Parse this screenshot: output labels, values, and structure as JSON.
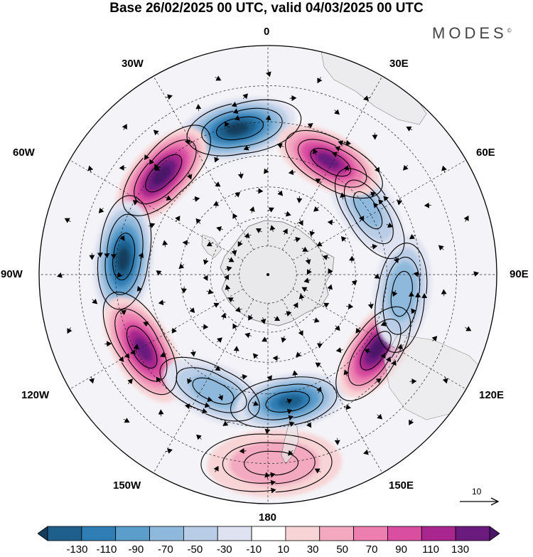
{
  "title": "Base 26/02/2025 00 UTC, valid 04/03/2025 00 UTC",
  "brand": "MODES",
  "brand_mark": "©",
  "longitude_labels": {
    "lon_0": "0",
    "lon_30e": "30E",
    "lon_60e": "60E",
    "lon_90e": "90E",
    "lon_120e": "120E",
    "lon_150e": "150E",
    "lon_180": "180",
    "lon_150w": "150W",
    "lon_120w": "120W",
    "lon_90w": "90W",
    "lon_60w": "60W",
    "lon_30w": "30W"
  },
  "reference_vector": {
    "label": "10"
  },
  "colorbar": {
    "ticks": [
      "-130",
      "-110",
      "-90",
      "-70",
      "-50",
      "-30",
      "-10",
      "10",
      "30",
      "50",
      "70",
      "90",
      "110",
      "130"
    ],
    "colors": [
      "#153c5c",
      "#1e5f8c",
      "#2e7db4",
      "#5b9dcb",
      "#8fb9dc",
      "#b9cde6",
      "#dfe2f0",
      "#ffffff",
      "#f8d4d6",
      "#f3a9c0",
      "#ec7fb0",
      "#d94ea0",
      "#a8268d",
      "#6b1a7e",
      "#4a1468"
    ]
  },
  "map": {
    "projection": "south polar stereographic",
    "field": "anomaly (shaded) with streamlines",
    "anomaly_cells": [
      {
        "lon": -12,
        "lat": -41,
        "value": -140
      },
      {
        "lon": -47,
        "lat": -42,
        "value": 140
      },
      {
        "lon": -84,
        "lat": -42,
        "value": -140
      },
      {
        "lon": -121,
        "lat": -42,
        "value": 120
      },
      {
        "lon": -156,
        "lat": -47,
        "value": -70
      },
      {
        "lon": 170,
        "lat": -47,
        "value": -120
      },
      {
        "lon": 124,
        "lat": -46,
        "value": 140
      },
      {
        "lon": 97,
        "lat": -45,
        "value": -75
      },
      {
        "lon": 56,
        "lat": -50,
        "value": -60
      },
      {
        "lon": 28,
        "lat": -47,
        "value": 120
      },
      {
        "lon": 178,
        "lat": -30,
        "value": 50
      }
    ]
  }
}
